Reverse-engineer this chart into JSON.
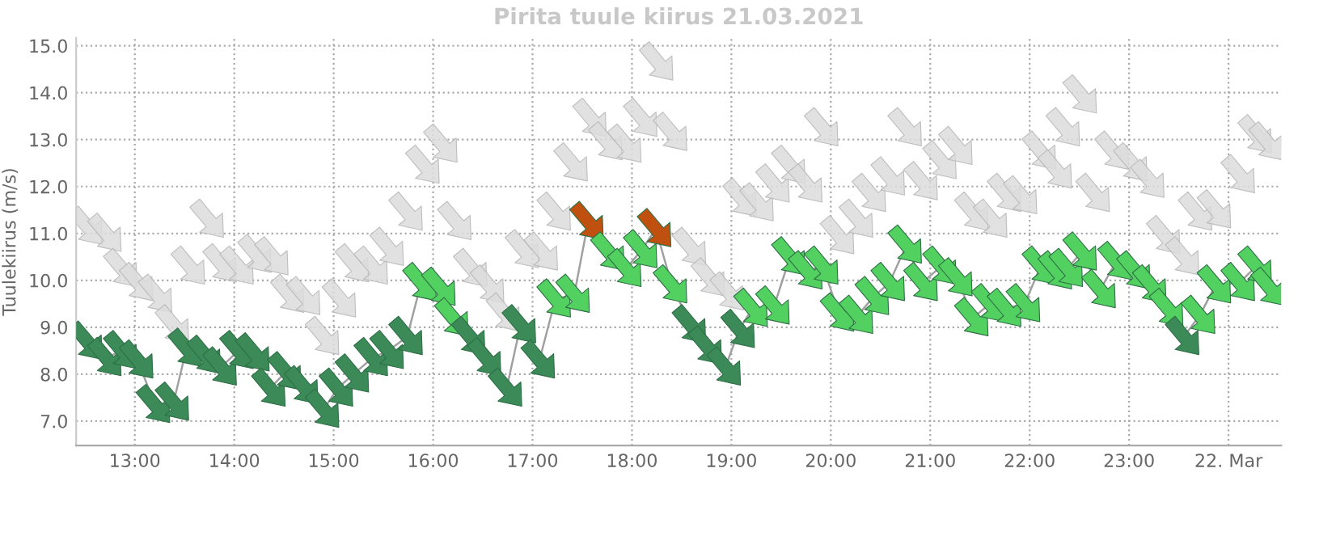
{
  "chart_data": {
    "type": "line",
    "title": "Pirita tuule kiirus 21.03.2021",
    "ylabel": "Tuulekiirus (m/s)",
    "xlim": [
      12.41,
      24.53
    ],
    "ylim": [
      6.48,
      15.17
    ],
    "xticks": [
      {
        "value": 13,
        "label": "13:00"
      },
      {
        "value": 14,
        "label": "14:00"
      },
      {
        "value": 15,
        "label": "15:00"
      },
      {
        "value": 16,
        "label": "16:00"
      },
      {
        "value": 17,
        "label": "17:00"
      },
      {
        "value": 18,
        "label": "18:00"
      },
      {
        "value": 19,
        "label": "19:00"
      },
      {
        "value": 20,
        "label": "20:00"
      },
      {
        "value": 21,
        "label": "21:00"
      },
      {
        "value": 22,
        "label": "22:00"
      },
      {
        "value": 23,
        "label": "23:00"
      },
      {
        "value": 24,
        "label": "22. Mar"
      }
    ],
    "yticks": [
      {
        "value": 7,
        "label": "7.0"
      },
      {
        "value": 8,
        "label": "8.0"
      },
      {
        "value": 9,
        "label": "9.0"
      },
      {
        "value": 10,
        "label": "10.0"
      },
      {
        "value": 11,
        "label": "11.0"
      },
      {
        "value": 12,
        "label": "12.0"
      },
      {
        "value": 13,
        "label": "13.0"
      },
      {
        "value": 14,
        "label": "14.0"
      },
      {
        "value": 15,
        "label": "15.0"
      }
    ],
    "grid": true,
    "legend": false,
    "marker": "triangle",
    "series": [
      {
        "type": "scatter",
        "color": "#dcdcdc",
        "x": [
          12.52,
          12.71,
          12.87,
          13.03,
          13.22,
          13.39,
          13.55,
          13.74,
          13.87,
          14.04,
          14.22,
          14.39,
          14.55,
          14.71,
          14.9,
          15.07,
          15.2,
          15.39,
          15.55,
          15.74,
          15.91,
          16.09,
          16.23,
          16.39,
          16.56,
          16.72,
          16.91,
          17.1,
          17.23,
          17.4,
          17.59,
          17.75,
          17.94,
          18.1,
          18.26,
          18.4,
          18.59,
          18.78,
          18.97,
          19.1,
          19.27,
          19.43,
          19.59,
          19.76,
          19.92,
          20.08,
          20.27,
          20.4,
          20.59,
          20.76,
          20.92,
          21.11,
          21.27,
          21.43,
          21.62,
          21.76,
          21.92,
          22.11,
          22.27,
          22.35,
          22.52,
          22.65,
          22.84,
          23.03,
          23.2,
          23.36,
          23.55,
          23.68,
          23.87,
          24.11,
          24.28,
          24.39
        ],
        "values": [
          11.15,
          11.0,
          10.25,
          9.95,
          9.7,
          9.05,
          10.3,
          11.3,
          10.35,
          10.3,
          10.55,
          10.5,
          9.7,
          9.65,
          8.8,
          9.6,
          10.35,
          10.3,
          10.7,
          11.45,
          12.45,
          12.9,
          11.25,
          10.25,
          9.9,
          9.3,
          10.65,
          10.6,
          11.45,
          12.5,
          13.45,
          12.95,
          12.9,
          13.45,
          14.65,
          13.15,
          10.7,
          10.05,
          9.75,
          11.75,
          11.65,
          12.05,
          12.45,
          12.05,
          13.25,
          10.95,
          11.3,
          11.85,
          12.2,
          13.25,
          12.1,
          12.55,
          12.85,
          11.45,
          11.3,
          11.85,
          11.8,
          12.75,
          12.35,
          13.25,
          13.95,
          11.85,
          12.75,
          12.5,
          12.15,
          10.95,
          10.5,
          11.45,
          11.5,
          12.25,
          13.1,
          12.95
        ]
      },
      {
        "color": "#a0a0a0",
        "x": [
          12.52,
          12.71,
          12.87,
          13.03,
          13.2,
          13.39,
          13.52,
          13.71,
          13.87,
          14.04,
          14.2,
          14.36,
          14.52,
          14.69,
          14.9,
          15.04,
          15.2,
          15.39,
          15.55,
          15.74,
          15.88,
          16.07,
          16.2,
          16.37,
          16.53,
          16.74,
          16.88,
          17.07,
          17.23,
          17.42,
          17.56,
          17.77,
          17.94,
          18.1,
          18.24,
          18.4,
          18.59,
          18.75,
          18.94,
          19.08,
          19.21,
          19.43,
          19.59,
          19.76,
          19.92,
          20.08,
          20.27,
          20.43,
          20.59,
          20.76,
          20.92,
          21.11,
          21.27,
          21.43,
          21.6,
          21.76,
          21.95,
          22.11,
          22.27,
          22.38,
          22.52,
          22.71,
          22.87,
          23.06,
          23.22,
          23.39,
          23.55,
          23.71,
          23.87,
          24.11,
          24.28,
          24.41
        ],
        "values": [
          8.7,
          8.35,
          8.5,
          8.3,
          7.35,
          7.4,
          8.55,
          8.4,
          8.15,
          8.5,
          8.45,
          7.7,
          8.05,
          7.75,
          7.25,
          7.7,
          8.0,
          8.35,
          8.5,
          8.8,
          9.95,
          9.85,
          9.2,
          8.8,
          8.35,
          7.7,
          9.05,
          8.3,
          9.6,
          9.7,
          11.25,
          10.6,
          10.25,
          10.65,
          11.1,
          9.9,
          9.05,
          8.6,
          8.15,
          8.95,
          9.4,
          9.45,
          10.5,
          10.2,
          10.3,
          9.3,
          9.25,
          9.65,
          9.95,
          10.75,
          9.95,
          10.3,
          10.05,
          9.2,
          9.5,
          9.4,
          9.5,
          10.3,
          10.2,
          10.25,
          10.6,
          9.8,
          10.4,
          10.2,
          9.9,
          9.4,
          8.8,
          9.25,
          9.9,
          9.95,
          10.3,
          9.85
        ],
        "colors": [
          "#3b8a58",
          "#3b8a58",
          "#3b8a58",
          "#3b8a58",
          "#3b8a58",
          "#3b8a58",
          "#3b8a58",
          "#3b8a58",
          "#3b8a58",
          "#3b8a58",
          "#3b8a58",
          "#3b8a58",
          "#3b8a58",
          "#3b8a58",
          "#3b8a58",
          "#3b8a58",
          "#3b8a58",
          "#3b8a58",
          "#3b8a58",
          "#3b8a58",
          "#52d160",
          "#52d160",
          "#52d160",
          "#3b8a58",
          "#3b8a58",
          "#3b8a58",
          "#3b8a58",
          "#3b8a58",
          "#52d160",
          "#52d160",
          "#c0500f",
          "#52d160",
          "#52d160",
          "#52d160",
          "#c0500f",
          "#52d160",
          "#3b8a58",
          "#3b8a58",
          "#3b8a58",
          "#3b8a58",
          "#52d160",
          "#52d160",
          "#52d160",
          "#52d160",
          "#52d160",
          "#52d160",
          "#52d160",
          "#52d160",
          "#52d160",
          "#52d160",
          "#52d160",
          "#52d160",
          "#52d160",
          "#52d160",
          "#52d160",
          "#52d160",
          "#52d160",
          "#52d160",
          "#52d160",
          "#52d160",
          "#52d160",
          "#52d160",
          "#52d160",
          "#52d160",
          "#52d160",
          "#52d160",
          "#3b8a58",
          "#52d160",
          "#52d160",
          "#52d160",
          "#52d160",
          "#52d160"
        ]
      }
    ]
  }
}
